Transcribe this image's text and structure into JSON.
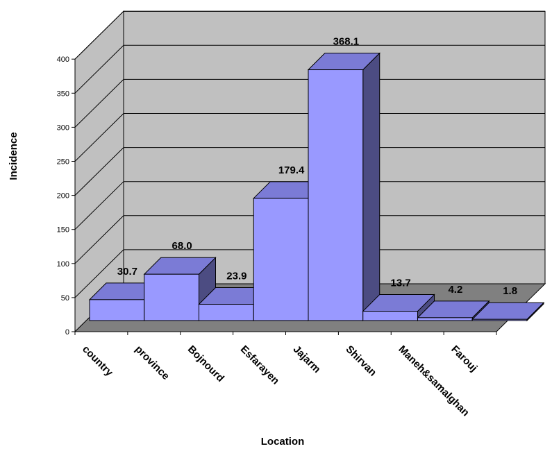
{
  "chart_data": {
    "type": "bar",
    "xlabel": "Location",
    "ylabel": "Incidence",
    "ylim": [
      0,
      400
    ],
    "yticks": [
      0,
      50,
      100,
      150,
      200,
      250,
      300,
      350,
      400
    ],
    "categories": [
      "country",
      "province",
      "Bojnourd",
      "Esfarayen",
      "Jajarm",
      "Shirvan",
      "Maneh&samalghan",
      "Farouj"
    ],
    "values": [
      30.7,
      68.0,
      23.9,
      179.4,
      368.1,
      13.7,
      4.2,
      1.8
    ],
    "value_labels": [
      "30.7",
      "68.0",
      "23.9",
      "179.4",
      "368.1",
      "13.7",
      "4.2",
      "1.8"
    ],
    "grid": true,
    "legend": "none",
    "three_d": true,
    "colors": {
      "bar_front": "#9999ff",
      "bar_top": "#7b7bd6",
      "bar_side": "#4c4c82",
      "wall": "#c0c0c0",
      "floor": "#808080"
    }
  }
}
